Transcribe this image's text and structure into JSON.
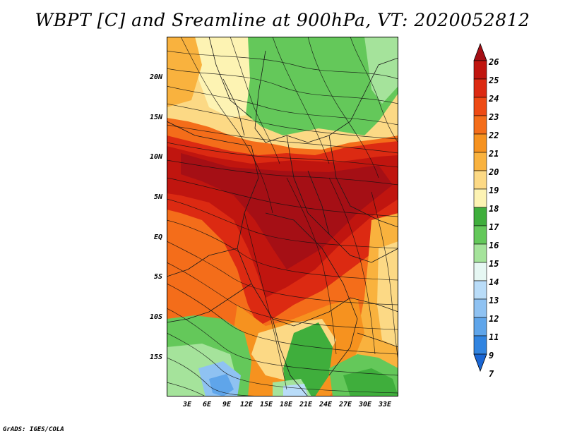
{
  "title": "WBPT [C] and Sreamline at 900hPa, VT: 2020052812",
  "credit": "GrADS: IGES/COLA",
  "map": {
    "latitude_labels": [
      "20N",
      "15N",
      "10N",
      "5N",
      "EQ",
      "5S",
      "10S",
      "15S"
    ],
    "longitude_labels": [
      "3E",
      "6E",
      "9E",
      "12E",
      "15E",
      "18E",
      "21E",
      "24E",
      "27E",
      "30E",
      "33E"
    ]
  },
  "colorbar": {
    "labels": [
      "26",
      "25",
      "24",
      "23",
      "22",
      "21",
      "20",
      "19",
      "18",
      "17",
      "16",
      "15",
      "14",
      "13",
      "12",
      "11",
      "9",
      "7"
    ],
    "colors": [
      "#a50f15",
      "#c0150f",
      "#dc2a12",
      "#ee4a14",
      "#f46d1a",
      "#f6921f",
      "#f9b23e",
      "#fcd985",
      "#fdf3b3",
      "#3fae3c",
      "#64c85a",
      "#a5e39b",
      "#e6f7f3",
      "#b9dcf8",
      "#8fc2f2",
      "#5fa5ea",
      "#3184e0",
      "#1a66d4"
    ]
  }
}
